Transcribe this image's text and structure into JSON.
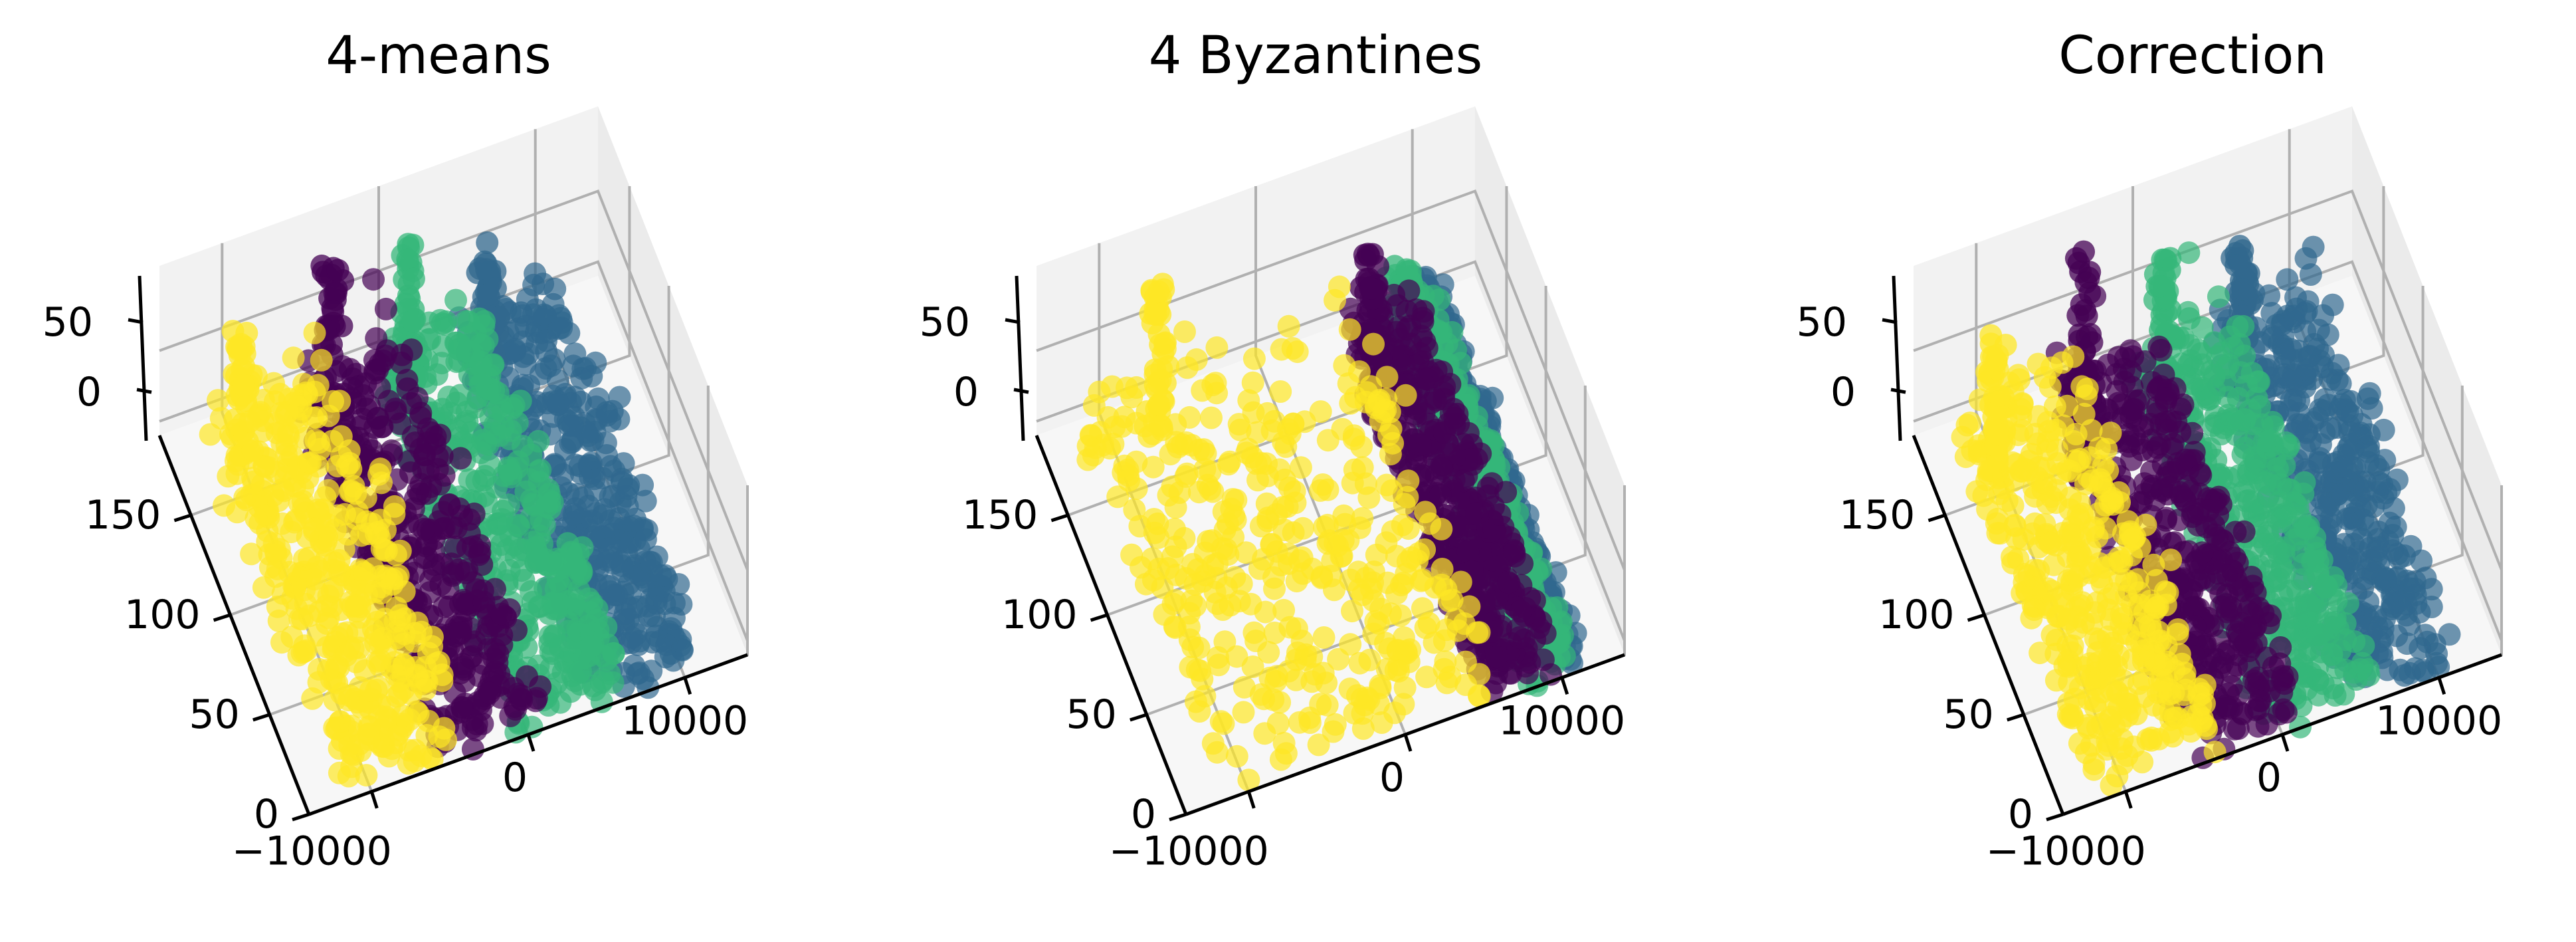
{
  "colors": {
    "cluster_yellow": "#fde725",
    "cluster_purple": "#440154",
    "cluster_green": "#35b779",
    "cluster_blue": "#31688e",
    "grid": "#b0b0b0",
    "pane": "#f2f2f2"
  },
  "chart_data": [
    {
      "type": "scatter",
      "title": "4-means",
      "x_ticks": [
        "−10000",
        "0",
        "10000"
      ],
      "y_ticks": [
        "0",
        "50",
        "100",
        "150"
      ],
      "z_ticks": [
        "0",
        "50"
      ],
      "clusters": [
        {
          "color": "#fde725",
          "x_range": [
            -12000,
            -4000
          ],
          "y_range": [
            0,
            180
          ],
          "z_max": 70
        },
        {
          "color": "#440154",
          "x_range": [
            -6000,
            1000
          ],
          "y_range": [
            0,
            180
          ],
          "z_max": 95
        },
        {
          "color": "#35b779",
          "x_range": [
            -1000,
            6000
          ],
          "y_range": [
            0,
            180
          ],
          "z_max": 85
        },
        {
          "color": "#31688e",
          "x_range": [
            4000,
            11000
          ],
          "y_range": [
            0,
            180
          ],
          "z_max": 60
        }
      ]
    },
    {
      "type": "scatter",
      "title": "4 Byzantines",
      "x_ticks": [
        "−10000",
        "0",
        "10000"
      ],
      "y_ticks": [
        "0",
        "50",
        "100",
        "150"
      ],
      "z_ticks": [
        "0",
        "50"
      ],
      "clusters": [
        {
          "color": "#fde725",
          "x_range": [
            -12000,
            6000
          ],
          "y_range": [
            0,
            180
          ],
          "z_max": 95
        },
        {
          "color": "#440154",
          "x_range": [
            5000,
            9500
          ],
          "y_range": [
            0,
            180
          ],
          "z_max": 60
        },
        {
          "color": "#35b779",
          "x_range": [
            7500,
            10500
          ],
          "y_range": [
            0,
            180
          ],
          "z_max": 40
        },
        {
          "color": "#31688e",
          "x_range": [
            9000,
            11000
          ],
          "y_range": [
            0,
            180
          ],
          "z_max": 30
        }
      ]
    },
    {
      "type": "scatter",
      "title": "Correction",
      "x_ticks": [
        "−10000",
        "0",
        "10000"
      ],
      "y_ticks": [
        "0",
        "50",
        "100",
        "150"
      ],
      "z_ticks": [
        "0",
        "50"
      ],
      "clusters": [
        {
          "color": "#fde725",
          "x_range": [
            -12000,
            -4000
          ],
          "y_range": [
            0,
            180
          ],
          "z_max": 70
        },
        {
          "color": "#440154",
          "x_range": [
            -6000,
            1000
          ],
          "y_range": [
            0,
            180
          ],
          "z_max": 95
        },
        {
          "color": "#35b779",
          "x_range": [
            -1000,
            6000
          ],
          "y_range": [
            0,
            180
          ],
          "z_max": 85
        },
        {
          "color": "#31688e",
          "x_range": [
            4000,
            11000
          ],
          "y_range": [
            0,
            180
          ],
          "z_max": 60
        }
      ]
    }
  ]
}
